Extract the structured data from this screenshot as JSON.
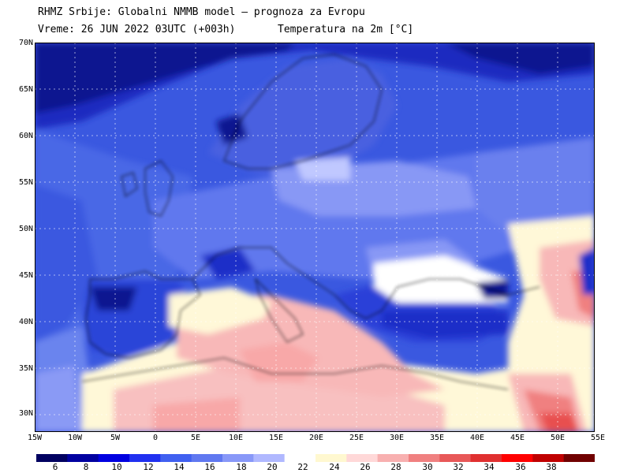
{
  "title_line1": "RHMZ Srbije: Globalni NMMB model — prognoza za Evropu",
  "title_line2": "Vreme: 26 JUN 2022 03UTC (+003h)",
  "title_line3": "Temperatura na 2m [°C]",
  "lat_labels": [
    "70N",
    "65N",
    "60N",
    "55N",
    "50N",
    "45N",
    "40N",
    "35N",
    "30N"
  ],
  "lon_labels": [
    "15W",
    "10W",
    "5W",
    "0",
    "5E",
    "10E",
    "15E",
    "20E",
    "25E",
    "30E",
    "35E",
    "40E",
    "45E",
    "50E",
    "55E"
  ],
  "colorbar_labels": [
    "6",
    "8",
    "10",
    "12",
    "14",
    "16",
    "18",
    "20",
    "22",
    "24",
    "26",
    "28",
    "30",
    "32",
    "34",
    "36",
    "38"
  ],
  "colors": {
    "ocean": "#4a68e6",
    "deep_blue": "#1a2dc8",
    "navy": "#0a1090",
    "light_blue": "#8a9af5",
    "pale_blue": "#c0c8ff",
    "white_band": "#ffffff",
    "cream": "#fff8d8",
    "pink": "#f8b8b8",
    "salmon": "#f09090",
    "red": "#e85050"
  },
  "colorbar_colors": [
    "#000060",
    "#0000a0",
    "#0000e0",
    "#2030f0",
    "#4060f0",
    "#6078f0",
    "#8898f8",
    "#b0b8ff",
    "#ffffff",
    "#fff8d0",
    "#ffd8d8",
    "#f8b0b0",
    "#f08080",
    "#e85858",
    "#e03030",
    "#ff0000",
    "#c00000",
    "#700000"
  ]
}
